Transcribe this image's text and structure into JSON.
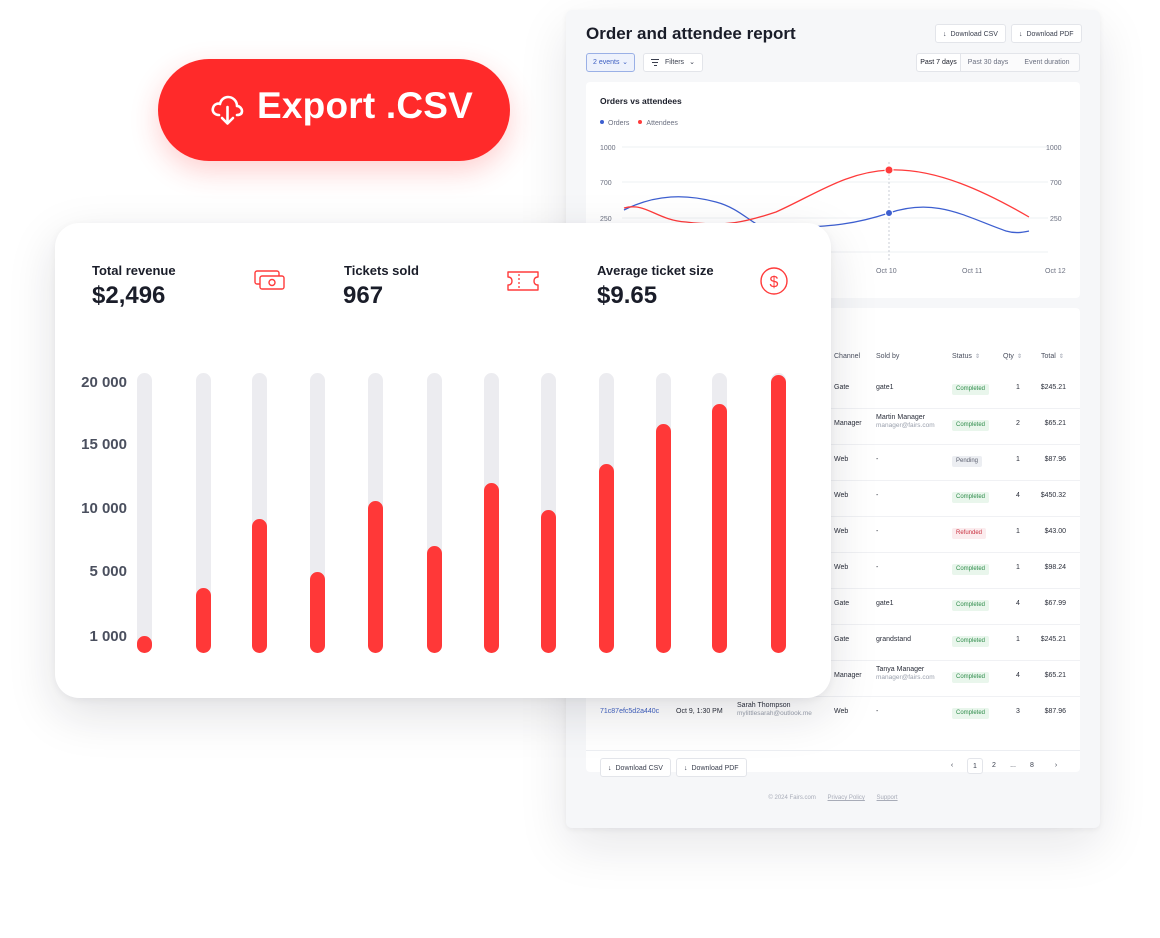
{
  "export_button": {
    "label": "Export .CSV",
    "icon": "cloud-download-icon",
    "color": "#ff2a2a"
  },
  "report": {
    "title": "Order and attendee report",
    "download_csv": "Download CSV",
    "download_pdf": "Download PDF",
    "events_select": "2 events",
    "filters": "Filters",
    "ranges": [
      "Past 7 days",
      "Past 30 days",
      "Event duration"
    ],
    "selected_range": "Past 7 days",
    "chart": {
      "title": "Orders vs attendees",
      "legend": [
        {
          "name": "Orders",
          "color": "#3d5fd0"
        },
        {
          "name": "Attendees",
          "color": "#ff3b3b"
        }
      ],
      "y_left_ticks": [
        "1000",
        "700",
        "250"
      ],
      "y_right_ticks": [
        "1000",
        "700",
        "250"
      ],
      "x_ticks": [
        "Oct 10",
        "Oct 11",
        "Oct 12"
      ]
    },
    "table": {
      "columns": [
        "Channel",
        "Sold by",
        "Status",
        "Qty",
        "Total"
      ],
      "rows": [
        {
          "channel": "Gate",
          "sold_by": "gate1",
          "sold_by_email": "",
          "status": "Completed",
          "qty": "1",
          "total": "$245.21"
        },
        {
          "channel": "Manager",
          "sold_by": "Martin Manager",
          "sold_by_email": "manager@fairs.com",
          "status": "Completed",
          "qty": "2",
          "total": "$65.21"
        },
        {
          "channel": "Web",
          "sold_by": "-",
          "sold_by_email": "",
          "status": "Pending",
          "qty": "1",
          "total": "$87.96"
        },
        {
          "channel": "Web",
          "sold_by": "-",
          "sold_by_email": "",
          "status": "Completed",
          "qty": "4",
          "total": "$450.32"
        },
        {
          "channel": "Web",
          "sold_by": "-",
          "sold_by_email": "",
          "status": "Refunded",
          "qty": "1",
          "total": "$43.00"
        },
        {
          "channel": "Web",
          "sold_by": "-",
          "sold_by_email": "",
          "status": "Completed",
          "qty": "1",
          "total": "$98.24"
        },
        {
          "channel": "Gate",
          "sold_by": "gate1",
          "sold_by_email": "",
          "status": "Completed",
          "qty": "4",
          "total": "$67.99"
        },
        {
          "channel": "Gate",
          "sold_by": "grandstand",
          "sold_by_email": "",
          "status": "Completed",
          "qty": "1",
          "total": "$245.21"
        },
        {
          "channel": "Manager",
          "sold_by": "Tanya Manager",
          "sold_by_email": "manager@fairs.com",
          "status": "Completed",
          "qty": "4",
          "total": "$65.21"
        },
        {
          "order_id": "71c87efc5d2a440c",
          "date": "Oct 9, 1:30 PM",
          "buyer": "Sarah Thompson",
          "buyer_email": "mylittlesarah@outlook.me",
          "channel": "Web",
          "sold_by": "-",
          "sold_by_email": "",
          "status": "Completed",
          "qty": "3",
          "total": "$87.96"
        }
      ]
    },
    "pagination": {
      "pages": [
        "1",
        "2",
        "...",
        "8"
      ],
      "current": "1"
    },
    "footer": {
      "copyright": "© 2024 Fairs.com",
      "privacy": "Privacy Policy",
      "support": "Support"
    }
  },
  "stats": {
    "revenue": {
      "label": "Total revenue",
      "value": "$2,496",
      "icon": "cash-icon"
    },
    "tickets": {
      "label": "Tickets sold",
      "value": "967",
      "icon": "ticket-icon"
    },
    "avg": {
      "label": "Average ticket size",
      "value": "$9.65",
      "icon": "dollar-circle-icon"
    }
  },
  "chart_data": [
    {
      "type": "line",
      "title": "Orders vs attendees",
      "x": [
        "Oct 10",
        "Oct 11",
        "Oct 12"
      ],
      "series": [
        {
          "name": "Orders",
          "color": "#3d5fd0"
        },
        {
          "name": "Attendees",
          "color": "#ff3b3b"
        }
      ],
      "highlight": {
        "x": "Oct 10",
        "Orders": 330,
        "Attendees": 830
      },
      "ylim": [
        0,
        1000
      ]
    },
    {
      "type": "bar",
      "y_ticks": [
        "20 000",
        "15 000",
        "10 000",
        "5 000",
        "1 000"
      ],
      "values": [
        1400,
        5200,
        10800,
        6500,
        12200,
        8600,
        13700,
        11500,
        15200,
        18400,
        20000,
        22300
      ],
      "ylim": [
        0,
        22500
      ],
      "bar_color": "#ff3838",
      "track_color": "#ececf0"
    }
  ]
}
